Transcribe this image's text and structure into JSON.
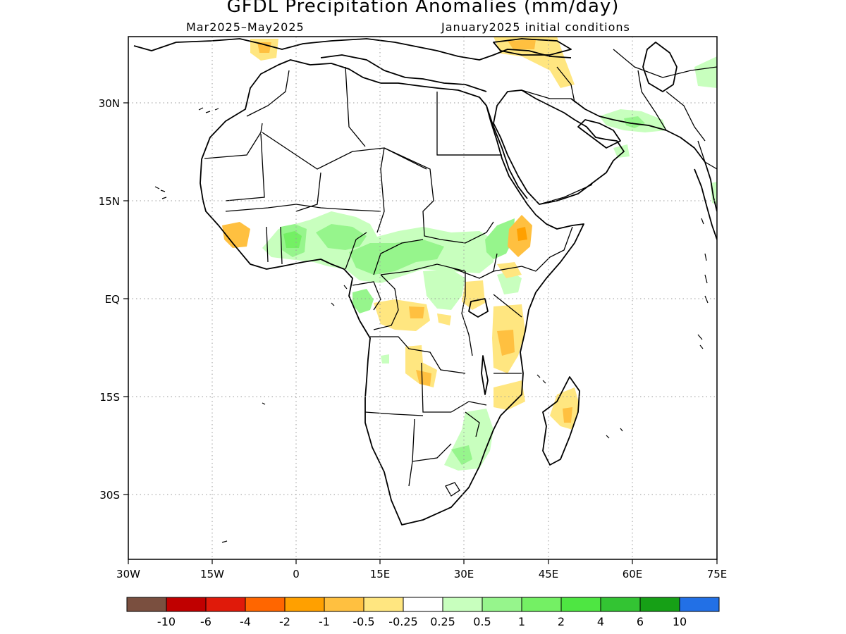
{
  "title": "GFDL Precipitation Anomalies (mm/day)",
  "subtitle_left": "Mar2025–May2025",
  "subtitle_right": "January2025 initial conditions",
  "map": {
    "region": "Africa",
    "lon_range": [
      "30W",
      "75E"
    ],
    "lat_range": [
      "41S",
      "40N"
    ],
    "grid": "dotted",
    "lon_ticks": [
      "30W",
      "15W",
      "0",
      "15E",
      "30E",
      "45E",
      "60E",
      "75E"
    ],
    "lat_ticks": [
      "30N",
      "15N",
      "EQ",
      "15S",
      "30S"
    ]
  },
  "colorbar": {
    "colors": [
      "#7a4f3f",
      "#c00000",
      "#e01a0a",
      "#ff6600",
      "#ffa000",
      "#ffc040",
      "#ffe680",
      "#ffffff",
      "#c8ffbe",
      "#96f58c",
      "#74f064",
      "#4ee642",
      "#33c433",
      "#16a016",
      "#2270e6"
    ],
    "labels": [
      "-10",
      "-6",
      "-4",
      "-2",
      "-1",
      "-0.5",
      "-0.25",
      "0.25",
      "0.5",
      "1",
      "2",
      "4",
      "6",
      "10"
    ]
  },
  "anomaly_colors": {
    "dry_light": "#ffe680",
    "dry": "#ffc040",
    "dry_strong": "#ffa000",
    "wet_light": "#c8ffbe",
    "wet": "#96f58c",
    "wet_strong": "#74f064",
    "wet_very": "#4ee642"
  }
}
